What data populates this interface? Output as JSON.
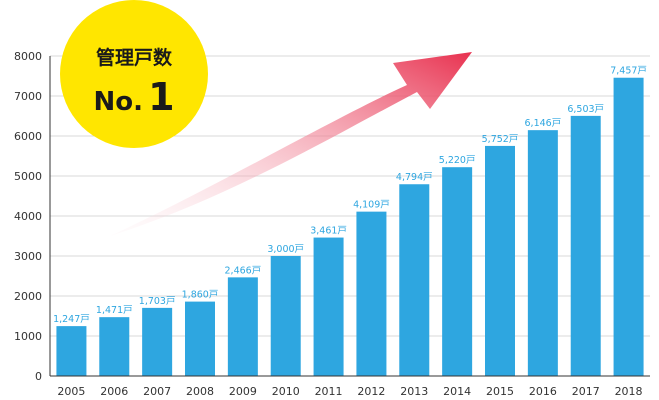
{
  "badge": {
    "line1": "管理戸数",
    "line2_prefix": "No.",
    "line2_num": "1",
    "color": "#ffe600"
  },
  "colors": {
    "bar": "#2ea6e0",
    "label": "#2ea6e0",
    "arrow_start": "#fbe3e8",
    "arrow_end": "#e8314f",
    "grid": "#cccccc",
    "axis": "#333333"
  },
  "chart_data": {
    "type": "bar",
    "categories": [
      "2005",
      "2006",
      "2007",
      "2008",
      "2009",
      "2010",
      "2011",
      "2012",
      "2013",
      "2014",
      "2015",
      "2016",
      "2017",
      "2018"
    ],
    "values": [
      1247,
      1471,
      1703,
      1860,
      2466,
      3000,
      3461,
      4109,
      4794,
      5220,
      5752,
      6146,
      6503,
      7457
    ],
    "value_labels": [
      "1,247戸",
      "1,471戸",
      "1,703戸",
      "1,860戸",
      "2,466戸",
      "3,000戸",
      "3,461戸",
      "4,109戸",
      "4,794戸",
      "5,220戸",
      "5,752戸",
      "6,146戸",
      "6,503戸",
      "7,457戸"
    ],
    "yticks": [
      0,
      1000,
      2000,
      3000,
      4000,
      5000,
      6000,
      7000,
      8000
    ],
    "ylim": [
      0,
      8000
    ],
    "grid": true,
    "title": "",
    "xlabel": "",
    "ylabel": ""
  }
}
